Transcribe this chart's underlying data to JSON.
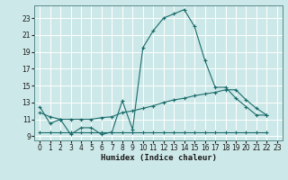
{
  "xlabel": "Humidex (Indice chaleur)",
  "bg_color": "#cde8e8",
  "grid_color": "#ffffff",
  "line_color": "#1a6b6b",
  "xlim": [
    -0.5,
    23.5
  ],
  "ylim": [
    8.5,
    24.5
  ],
  "yticks": [
    9,
    11,
    13,
    15,
    17,
    19,
    21,
    23
  ],
  "xticks": [
    0,
    1,
    2,
    3,
    4,
    5,
    6,
    7,
    8,
    9,
    10,
    11,
    12,
    13,
    14,
    15,
    16,
    17,
    18,
    19,
    20,
    21,
    22,
    23
  ],
  "line1_x": [
    0,
    1,
    2,
    3,
    4,
    5,
    6,
    7,
    8,
    9,
    10,
    11,
    12,
    13,
    14,
    15,
    16,
    17,
    18,
    19,
    20,
    21,
    22
  ],
  "line1_y": [
    12.5,
    10.5,
    11.0,
    9.2,
    10.0,
    10.0,
    9.2,
    9.5,
    13.2,
    9.8,
    19.5,
    21.5,
    23.0,
    23.5,
    24.0,
    22.0,
    18.0,
    14.8,
    14.8,
    13.5,
    12.5,
    11.5,
    11.5
  ],
  "line2_x": [
    0,
    1,
    2,
    3,
    4,
    5,
    6,
    7,
    8,
    9,
    10,
    11,
    12,
    13,
    14,
    15,
    16,
    17,
    18,
    19,
    20,
    21,
    22
  ],
  "line2_y": [
    11.8,
    11.3,
    11.0,
    11.0,
    11.0,
    11.0,
    11.2,
    11.3,
    11.8,
    12.0,
    12.3,
    12.6,
    13.0,
    13.3,
    13.5,
    13.8,
    14.0,
    14.2,
    14.5,
    14.5,
    13.3,
    12.3,
    11.5
  ],
  "line3_x": [
    0,
    1,
    2,
    3,
    4,
    5,
    6,
    7,
    8,
    9,
    10,
    11,
    12,
    13,
    14,
    15,
    16,
    17,
    18,
    19,
    20,
    21,
    22
  ],
  "line3_y": [
    9.5,
    9.5,
    9.5,
    9.5,
    9.5,
    9.5,
    9.5,
    9.5,
    9.5,
    9.5,
    9.5,
    9.5,
    9.5,
    9.5,
    9.5,
    9.5,
    9.5,
    9.5,
    9.5,
    9.5,
    9.5,
    9.5,
    9.5
  ]
}
